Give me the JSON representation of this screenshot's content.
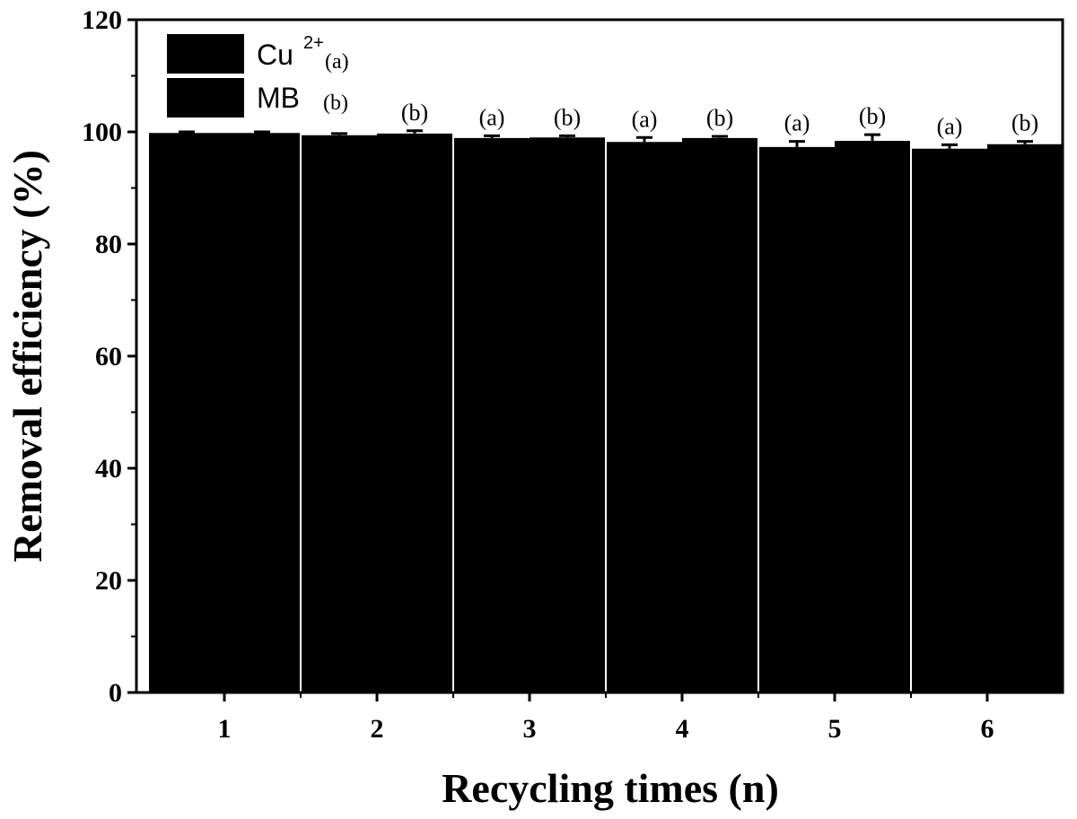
{
  "chart_data": {
    "type": "bar",
    "xlabel": "Recycling times (n)",
    "ylabel": "Removal efficiency (%)",
    "ylim": [
      0,
      120
    ],
    "yticks": [
      0,
      20,
      40,
      60,
      80,
      100,
      120
    ],
    "categories": [
      "1",
      "2",
      "3",
      "4",
      "5",
      "6"
    ],
    "series": [
      {
        "name": "Cu",
        "name_sup": "2+",
        "tag": "(a)",
        "color": "#000000",
        "values": [
          99.8,
          99.4,
          98.9,
          98.2,
          97.3,
          97.0
        ],
        "errors": [
          0.2,
          0.3,
          0.4,
          0.8,
          1.0,
          0.7
        ],
        "bar_labels": [
          "",
          "",
          "(a)",
          "(a)",
          "(a)",
          "(a)"
        ]
      },
      {
        "name": "MB",
        "tag": "(b)",
        "color": "#000000",
        "values": [
          99.8,
          99.7,
          99.0,
          98.9,
          98.4,
          97.8
        ],
        "errors": [
          0.2,
          0.5,
          0.3,
          0.3,
          1.1,
          0.5
        ],
        "bar_labels": [
          "",
          "(b)",
          "(b)",
          "(b)",
          "(b)",
          "(b)"
        ]
      }
    ],
    "legend_position": "top-left",
    "grid": false
  }
}
